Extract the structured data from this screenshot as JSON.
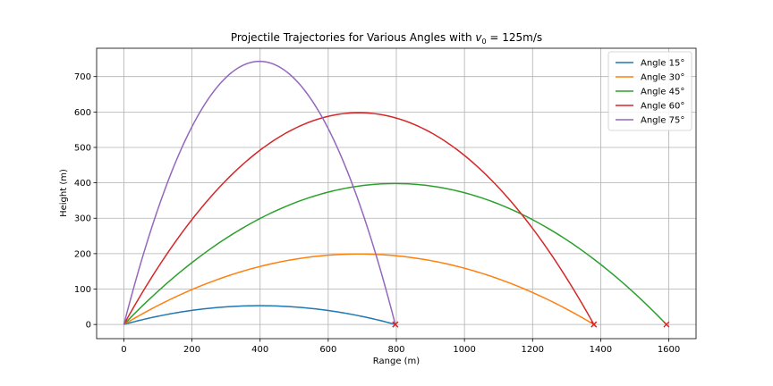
{
  "chart_data": {
    "type": "line",
    "title_main": "Projectile Trajectories for Various Angles with ",
    "title_v": "v",
    "title_sub": "0",
    "title_rest": " = 125m/s",
    "xlabel": "Range (m)",
    "ylabel": "Height (m)",
    "xlim": [
      -80,
      1680
    ],
    "ylim": [
      -40,
      780
    ],
    "xticks": [
      0,
      200,
      400,
      600,
      800,
      1000,
      1200,
      1400,
      1600
    ],
    "yticks": [
      0,
      100,
      200,
      300,
      400,
      500,
      600,
      700
    ],
    "grid": true,
    "legend_position": "top-right",
    "landing_marker": "x",
    "landing_marker_color": "#d62728",
    "series": [
      {
        "name": "Angle 15°",
        "color": "#1f77b4",
        "range": 797,
        "max_height": 53
      },
      {
        "name": "Angle 30°",
        "color": "#ff7f0e",
        "range": 1380,
        "max_height": 199
      },
      {
        "name": "Angle 45°",
        "color": "#2ca02c",
        "range": 1593,
        "max_height": 398
      },
      {
        "name": "Angle 60°",
        "color": "#d62728",
        "range": 1380,
        "max_height": 598
      },
      {
        "name": "Angle 75°",
        "color": "#9467bd",
        "range": 797,
        "max_height": 743
      }
    ]
  }
}
